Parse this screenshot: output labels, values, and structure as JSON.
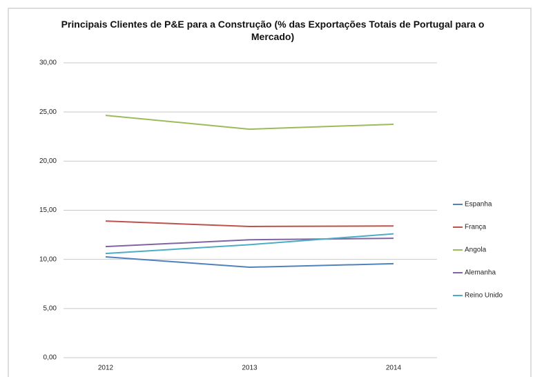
{
  "chart_data": {
    "type": "line",
    "title": "Principais Clientes de P&E para a Construção (% das Exportações Totais de Portugal para o Mercado)",
    "categories": [
      "2012",
      "2013",
      "2014"
    ],
    "series": [
      {
        "name": "Espanha",
        "color": "#4f81bd",
        "values": [
          10.26,
          9.2,
          9.56
        ]
      },
      {
        "name": "França",
        "color": "#c0504d",
        "values": [
          13.9,
          13.35,
          13.4
        ]
      },
      {
        "name": "Angola",
        "color": "#9bbb59",
        "values": [
          24.65,
          23.25,
          23.75
        ]
      },
      {
        "name": "Alemanha",
        "color": "#8064a2",
        "values": [
          11.3,
          12.0,
          12.15
        ]
      },
      {
        "name": "Reino Unido",
        "color": "#4bacc6",
        "values": [
          10.6,
          11.5,
          12.6
        ]
      }
    ],
    "ylim": [
      0,
      30
    ],
    "yticks": [
      {
        "value": 0,
        "label": "0,00"
      },
      {
        "value": 5,
        "label": "5,00"
      },
      {
        "value": 10,
        "label": "10,00"
      },
      {
        "value": 15,
        "label": "15,00"
      },
      {
        "value": 20,
        "label": "20,00"
      },
      {
        "value": 25,
        "label": "25,00"
      },
      {
        "value": 30,
        "label": "30,00"
      }
    ],
    "grid": true,
    "legend": "right"
  }
}
